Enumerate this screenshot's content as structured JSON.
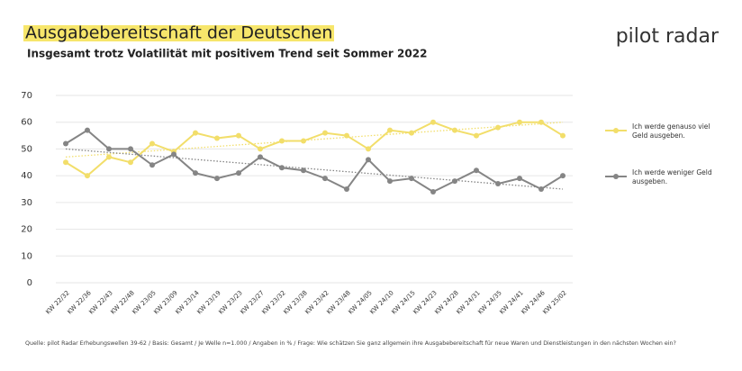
{
  "chart_data": {
    "type": "line",
    "title": "Ausgabebereitschaft der Deutschen",
    "subtitle": "Insgesamt trotz Volatilität mit positivem Trend seit Sommer 2022",
    "brand": "pilot radar",
    "source": "Quelle: pilot Radar Erhebungswellen 39-62 / Basis: Gesamt / Je Welle n=1.000 / Angaben in % / Frage: Wie schätzen Sie ganz allgemein ihre Ausgabebereitschaft für neue Waren und Dienstleistungen in den nächsten Wochen ein?",
    "categories": [
      "KW 22/32",
      "KW 22/36",
      "KW 22/43",
      "KW 22/48",
      "KW 23/05",
      "KW 23/09",
      "KW 23/14",
      "KW 23/19",
      "KW 23/23",
      "KW 23/27",
      "KW 23/32",
      "KW 23/38",
      "KW 23/42",
      "KW 23/48",
      "KW 24/05",
      "KW 24/10",
      "KW 24/15",
      "KW 24/23",
      "KW 24/28",
      "KW 24/31",
      "KW 24/35",
      "KW 24/41",
      "KW 24/46",
      "KW 25/02"
    ],
    "series": [
      {
        "name": "Ich werde genauso viel Geld ausgeben.",
        "color": "#f2de6a",
        "values": [
          45,
          40,
          47,
          45,
          52,
          49,
          56,
          54,
          55,
          50,
          53,
          53,
          56,
          55,
          50,
          57,
          56,
          60,
          57,
          55,
          58,
          60,
          60,
          55
        ],
        "trend": [
          47,
          60
        ]
      },
      {
        "name": "Ich werde weniger Geld ausgeben.",
        "color": "#858585",
        "values": [
          52,
          57,
          50,
          50,
          44,
          48,
          41,
          39,
          41,
          47,
          43,
          42,
          39,
          35,
          46,
          38,
          39,
          34,
          38,
          42,
          37,
          39,
          35,
          40
        ],
        "trend": [
          50,
          35
        ]
      }
    ],
    "ylim": [
      0,
      70
    ],
    "yticks": [
      0,
      10,
      20,
      30,
      40,
      50,
      60,
      70
    ],
    "grid": true
  }
}
